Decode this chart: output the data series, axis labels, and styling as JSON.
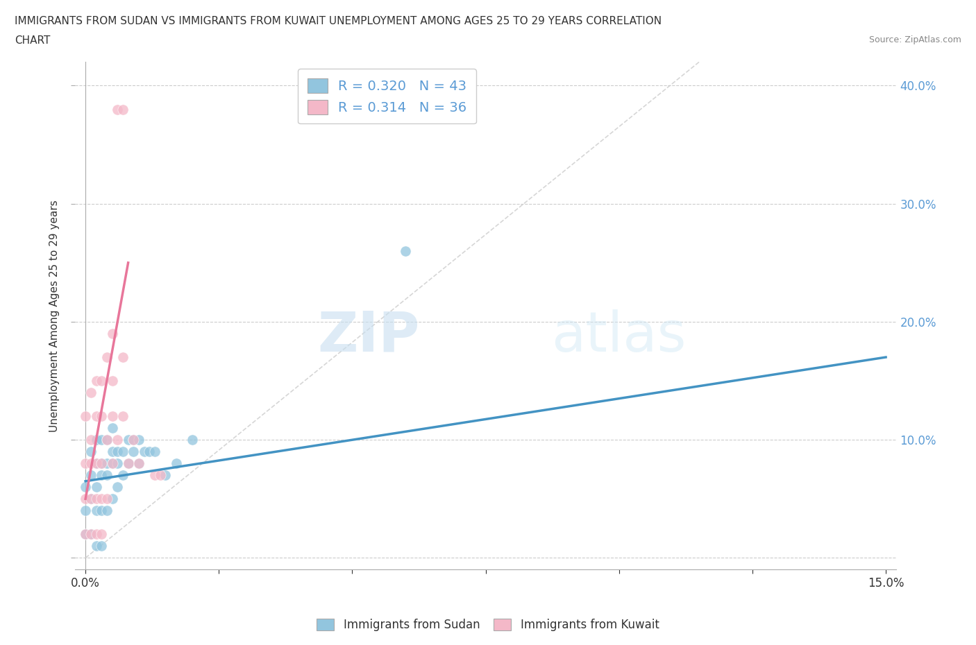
{
  "title_line1": "IMMIGRANTS FROM SUDAN VS IMMIGRANTS FROM KUWAIT UNEMPLOYMENT AMONG AGES 25 TO 29 YEARS CORRELATION",
  "title_line2": "CHART",
  "source": "Source: ZipAtlas.com",
  "ylabel": "Unemployment Among Ages 25 to 29 years",
  "xlim": [
    -0.002,
    0.152
  ],
  "ylim": [
    -0.01,
    0.42
  ],
  "xticks": [
    0.0,
    0.025,
    0.05,
    0.075,
    0.1,
    0.125,
    0.15
  ],
  "xtick_labels": [
    "0.0%",
    "",
    "",
    "",
    "",
    "",
    "15.0%"
  ],
  "yticks": [
    0.0,
    0.1,
    0.2,
    0.3,
    0.4
  ],
  "ytick_labels_right": [
    "",
    "10.0%",
    "20.0%",
    "30.0%",
    "40.0%"
  ],
  "legend_R1": "0.320",
  "legend_N1": "43",
  "legend_R2": "0.314",
  "legend_N2": "36",
  "color_sudan": "#92c5de",
  "color_kuwait": "#f4b8c8",
  "color_trend_sudan": "#4393c3",
  "color_trend_kuwait": "#e8769a",
  "color_diagonal": "#cccccc",
  "watermark_zip": "ZIP",
  "watermark_atlas": "atlas",
  "sudan_x": [
    0.0,
    0.0,
    0.0,
    0.001,
    0.001,
    0.001,
    0.001,
    0.002,
    0.002,
    0.002,
    0.002,
    0.002,
    0.003,
    0.003,
    0.003,
    0.003,
    0.003,
    0.004,
    0.004,
    0.004,
    0.004,
    0.005,
    0.005,
    0.005,
    0.005,
    0.006,
    0.006,
    0.006,
    0.007,
    0.007,
    0.008,
    0.008,
    0.009,
    0.009,
    0.01,
    0.01,
    0.011,
    0.012,
    0.013,
    0.015,
    0.017,
    0.02,
    0.06
  ],
  "sudan_y": [
    0.02,
    0.04,
    0.06,
    0.02,
    0.05,
    0.07,
    0.09,
    0.01,
    0.04,
    0.06,
    0.08,
    0.1,
    0.01,
    0.04,
    0.07,
    0.08,
    0.1,
    0.04,
    0.07,
    0.08,
    0.1,
    0.05,
    0.08,
    0.09,
    0.11,
    0.06,
    0.08,
    0.09,
    0.07,
    0.09,
    0.08,
    0.1,
    0.09,
    0.1,
    0.08,
    0.1,
    0.09,
    0.09,
    0.09,
    0.07,
    0.08,
    0.1,
    0.26
  ],
  "kuwait_x": [
    0.0,
    0.0,
    0.0,
    0.0,
    0.001,
    0.001,
    0.001,
    0.001,
    0.001,
    0.002,
    0.002,
    0.002,
    0.002,
    0.002,
    0.003,
    0.003,
    0.003,
    0.003,
    0.003,
    0.004,
    0.004,
    0.004,
    0.005,
    0.005,
    0.005,
    0.005,
    0.006,
    0.006,
    0.007,
    0.007,
    0.007,
    0.008,
    0.009,
    0.01,
    0.013,
    0.014
  ],
  "kuwait_y": [
    0.02,
    0.05,
    0.08,
    0.12,
    0.02,
    0.05,
    0.08,
    0.1,
    0.14,
    0.02,
    0.05,
    0.08,
    0.12,
    0.15,
    0.02,
    0.05,
    0.08,
    0.12,
    0.15,
    0.05,
    0.1,
    0.17,
    0.08,
    0.12,
    0.15,
    0.19,
    0.1,
    0.38,
    0.12,
    0.17,
    0.38,
    0.08,
    0.1,
    0.08,
    0.07,
    0.07
  ],
  "sudan_trend_x": [
    0.0,
    0.15
  ],
  "sudan_trend_y": [
    0.065,
    0.17
  ],
  "kuwait_trend_x": [
    0.0,
    0.008
  ],
  "kuwait_trend_y": [
    0.05,
    0.25
  ]
}
